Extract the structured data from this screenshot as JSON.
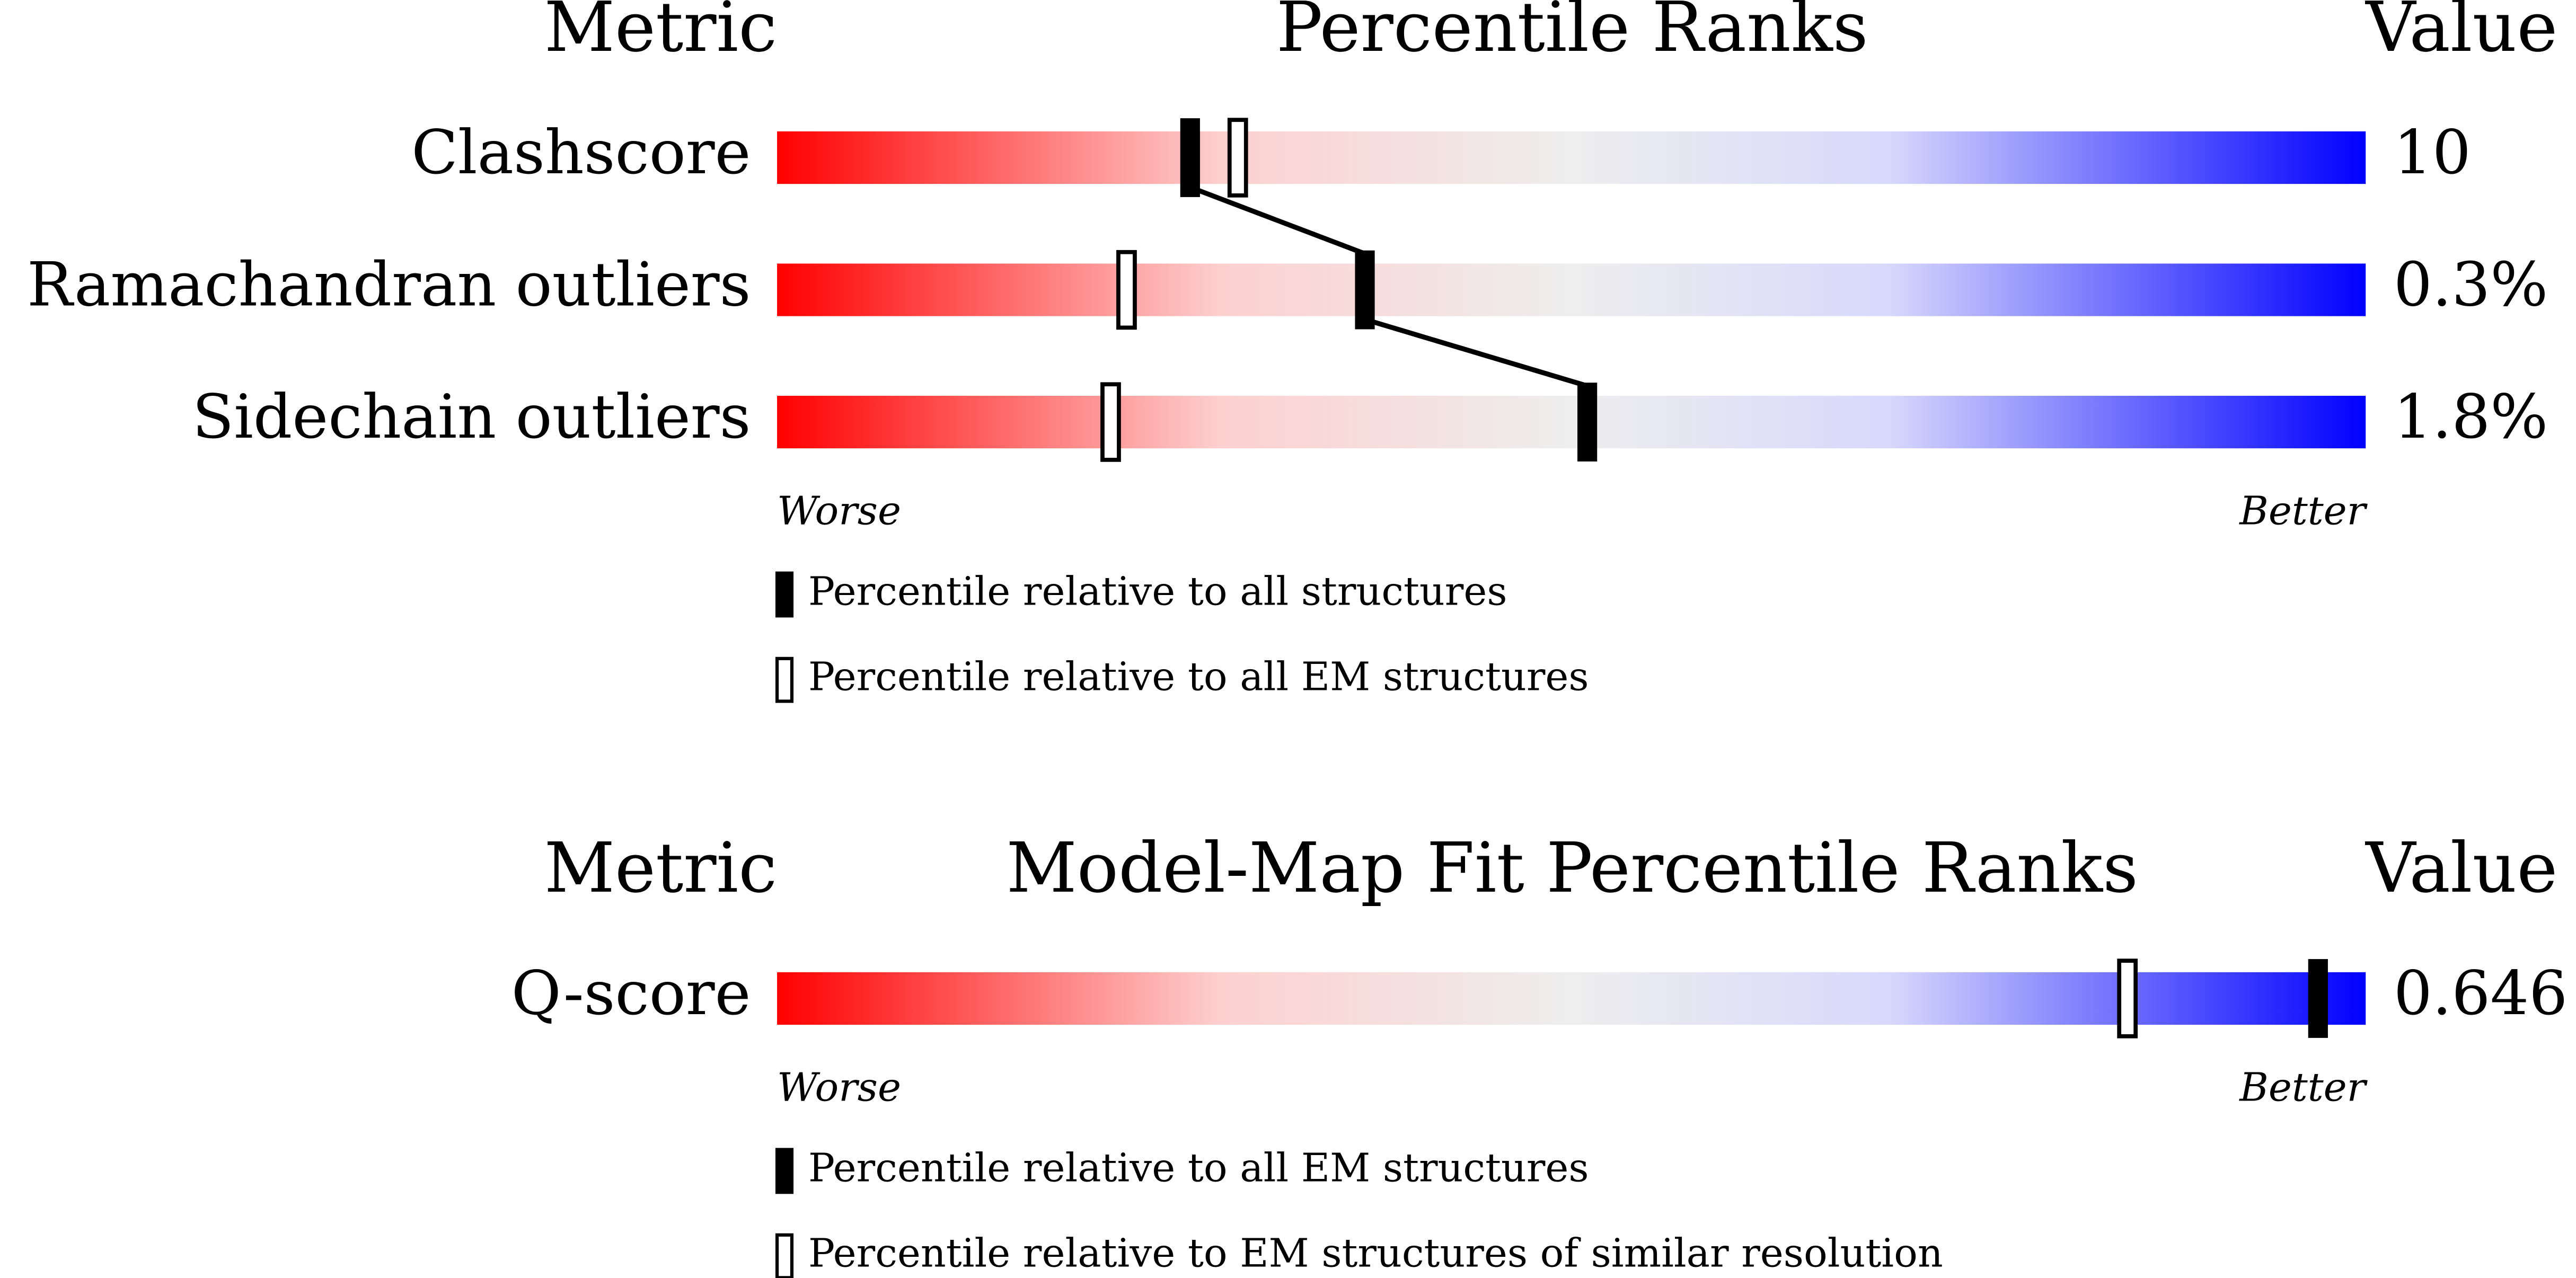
{
  "chart_data": [
    {
      "type": "percentile-slider",
      "metric_header": "Metric",
      "title": "Percentile Ranks",
      "value_header": "Value",
      "categories": [
        "Clashscore",
        "Ramachandran outliers",
        "Sidechain outliers"
      ],
      "metric_values": [
        "10",
        "0.3%",
        "1.8%"
      ],
      "series": [
        {
          "name": "Percentile relative to all structures",
          "color": "#000000",
          "fill": "solid",
          "values": [
            26,
            37,
            51
          ]
        },
        {
          "name": "Percentile relative to all EM structures",
          "color": "#000000",
          "fill": "open",
          "values": [
            29,
            22,
            21
          ]
        }
      ],
      "worse_label": "Worse",
      "better_label": "Better"
    },
    {
      "type": "percentile-slider",
      "metric_header": "Metric",
      "title": "Model-Map Fit Percentile Ranks",
      "value_header": "Value",
      "categories": [
        "Q-score"
      ],
      "metric_values": [
        "0.646"
      ],
      "series": [
        {
          "name": "Percentile relative to all EM structures",
          "color": "#000000",
          "fill": "solid",
          "values": [
            97
          ]
        },
        {
          "name": "Percentile relative to EM structures of similar resolution",
          "color": "#000000",
          "fill": "open",
          "values": [
            85
          ]
        }
      ],
      "worse_label": "Worse",
      "better_label": "Better"
    }
  ]
}
